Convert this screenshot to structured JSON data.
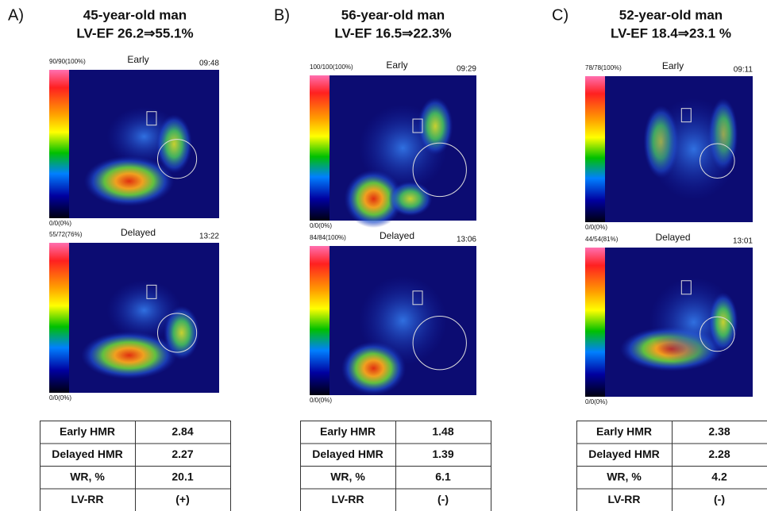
{
  "panels": [
    {
      "label": "A)",
      "title": [
        "45-year-old man",
        "LV-EF 26.2⇒55.1%"
      ],
      "images": [
        {
          "counts": "90/90(100%)",
          "phase": "Early",
          "time": "09:48",
          "floor": "0/0(0%)"
        },
        {
          "counts": "55/72(76%)",
          "phase": "Delayed",
          "time": "13:22",
          "floor": "0/0(0%)"
        }
      ],
      "table": [
        [
          "Early HMR",
          "2.84"
        ],
        [
          "Delayed HMR",
          "2.27"
        ],
        [
          "WR, %",
          "20.1"
        ],
        [
          "LV-RR",
          "(+)"
        ]
      ]
    },
    {
      "label": "B)",
      "title": [
        "56-year-old man",
        "LV-EF 16.5⇒22.3%"
      ],
      "images": [
        {
          "counts": "100/100(100%)",
          "phase": "Early",
          "time": "09:29",
          "floor": "0/0(0%)"
        },
        {
          "counts": "84/84(100%)",
          "phase": "Delayed",
          "time": "13:06",
          "floor": "0/0(0%)"
        }
      ],
      "table": [
        [
          "Early HMR",
          "1.48"
        ],
        [
          "Delayed HMR",
          "1.39"
        ],
        [
          "WR, %",
          "6.1"
        ],
        [
          "LV-RR",
          "(-)"
        ]
      ]
    },
    {
      "label": "C)",
      "title": [
        "52-year-old man",
        "LV-EF 18.4⇒23.1 %"
      ],
      "images": [
        {
          "counts": "78/78(100%)",
          "phase": "Early",
          "time": "09:11",
          "floor": "0/0(0%)"
        },
        {
          "counts": "44/54(81%)",
          "phase": "Delayed",
          "time": "13:01",
          "floor": "0/0(0%)"
        }
      ],
      "table": [
        [
          "Early HMR",
          "2.38"
        ],
        [
          "Delayed HMR",
          "2.28"
        ],
        [
          "WR, %",
          "4.2"
        ],
        [
          "LV-RR",
          "(-)"
        ]
      ]
    }
  ]
}
